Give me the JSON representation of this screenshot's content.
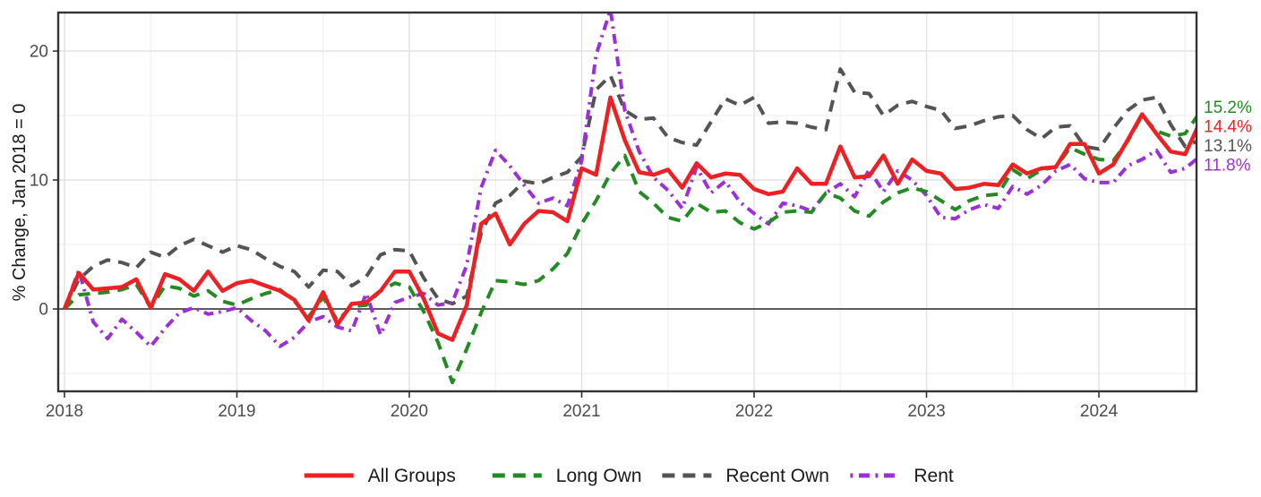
{
  "chart_data": {
    "type": "line",
    "title": "",
    "ylabel": "% Change, Jan 2018 = 0",
    "x_unit": "monthly",
    "x_range": [
      "2018-01",
      "2024-08"
    ],
    "x_tick_labels": [
      "2018",
      "2019",
      "2020",
      "2021",
      "2022",
      "2023",
      "2024"
    ],
    "y_ticks": [
      0,
      10,
      20
    ],
    "y_minor_ticks": [
      -5,
      5,
      15
    ],
    "ylim": [
      -6.4,
      23.0
    ],
    "grid": "major+minor",
    "zero_line": true,
    "legend_position": "bottom",
    "colors": {
      "all_groups": "#ED2024",
      "long_own": "#228B22",
      "recent_own": "#545454",
      "rent": "#9B30D6",
      "grid_major": "#E2E2E2",
      "grid_minor": "#F0F0F0",
      "axis_text": "#4D4D4D",
      "panel_border": "#333333",
      "zero_line_color": "#474747",
      "legend_text": "#1A1A1A"
    },
    "series": [
      {
        "name": "All Groups",
        "color": "#ED2024",
        "dash": "solid",
        "end_label": "14.4%",
        "values": [
          0.0,
          2.8,
          1.5,
          1.6,
          1.7,
          2.3,
          0.1,
          2.7,
          2.3,
          1.4,
          2.9,
          1.4,
          2.0,
          2.2,
          1.8,
          1.4,
          0.7,
          -0.9,
          1.3,
          -1.2,
          0.4,
          0.5,
          1.4,
          2.9,
          2.9,
          0.8,
          -1.9,
          -2.4,
          0.3,
          6.6,
          7.4,
          5.0,
          6.6,
          7.6,
          7.5,
          6.8,
          10.9,
          10.4,
          16.4,
          13.1,
          10.6,
          10.4,
          10.8,
          9.4,
          11.3,
          10.2,
          10.5,
          10.4,
          9.3,
          8.9,
          9.1,
          10.9,
          9.7,
          9.7,
          12.6,
          10.2,
          10.3,
          11.9,
          9.7,
          11.6,
          10.7,
          10.5,
          9.3,
          9.4,
          9.7,
          9.6,
          11.2,
          10.5,
          10.9,
          11.0,
          12.8,
          12.8,
          10.5,
          11.2,
          13.1,
          15.1,
          13.6,
          12.2,
          12.0,
          14.4
        ]
      },
      {
        "name": "Long Own",
        "color": "#228B22",
        "dash": "dashed",
        "end_label": "15.2%",
        "values": [
          0.0,
          1.1,
          1.2,
          1.3,
          1.5,
          1.9,
          0.1,
          1.8,
          1.6,
          1.0,
          1.4,
          0.6,
          0.3,
          0.8,
          1.2,
          1.5,
          0.6,
          -0.6,
          0.9,
          -0.9,
          0.2,
          0.3,
          1.4,
          2.0,
          1.7,
          -0.2,
          -2.6,
          -5.7,
          -3.1,
          -0.3,
          2.2,
          2.1,
          1.9,
          2.2,
          3.1,
          4.3,
          6.6,
          8.4,
          10.5,
          11.9,
          9.1,
          8.2,
          7.1,
          6.8,
          8.2,
          7.5,
          7.6,
          6.7,
          6.2,
          6.7,
          7.5,
          7.6,
          7.5,
          9.0,
          8.6,
          7.6,
          7.2,
          8.3,
          9.0,
          9.4,
          9.1,
          8.4,
          7.7,
          8.4,
          8.8,
          8.9,
          10.8,
          10.1,
          10.8,
          11.0,
          12.5,
          12.0,
          11.6,
          11.5,
          13.0,
          15.0,
          13.8,
          13.4,
          13.6,
          15.2
        ]
      },
      {
        "name": "Recent Own",
        "color": "#545454",
        "dash": "dashed",
        "end_label": "13.1%",
        "values": [
          0.0,
          2.3,
          3.3,
          3.8,
          3.6,
          3.2,
          4.4,
          4.0,
          4.9,
          5.4,
          4.9,
          4.4,
          4.9,
          4.6,
          3.9,
          3.3,
          2.9,
          1.7,
          3.0,
          2.9,
          1.8,
          2.5,
          4.2,
          4.6,
          4.5,
          2.4,
          0.8,
          0.4,
          1.0,
          5.9,
          8.2,
          8.8,
          9.9,
          9.7,
          10.2,
          10.6,
          11.8,
          17.0,
          18.1,
          15.4,
          14.7,
          14.8,
          13.3,
          12.9,
          12.7,
          14.5,
          16.3,
          15.8,
          16.4,
          14.4,
          14.5,
          14.4,
          14.1,
          13.9,
          18.6,
          16.8,
          16.7,
          15.0,
          15.8,
          16.1,
          15.7,
          15.4,
          14.0,
          14.2,
          14.6,
          14.9,
          15.0,
          13.9,
          13.2,
          14.1,
          14.2,
          12.6,
          12.4,
          14.0,
          15.4,
          16.2,
          16.4,
          14.3,
          12.6,
          13.1
        ]
      },
      {
        "name": "Rent",
        "color": "#9B30D6",
        "dash": "dotdash",
        "end_label": "11.8%",
        "values": [
          0.0,
          3.0,
          -1.0,
          -2.3,
          -0.8,
          -1.8,
          -2.9,
          -1.5,
          -0.3,
          0.1,
          -0.4,
          -0.2,
          0.1,
          -0.9,
          -1.7,
          -2.9,
          -2.2,
          -1.0,
          -0.6,
          -1.4,
          -1.7,
          1.2,
          -2.0,
          0.5,
          0.9,
          1.2,
          0.3,
          0.5,
          3.4,
          9.4,
          12.3,
          11.1,
          9.6,
          8.2,
          8.6,
          8.0,
          11.5,
          19.7,
          23.2,
          15.4,
          12.2,
          10.2,
          9.2,
          7.8,
          11.0,
          9.0,
          9.9,
          8.3,
          7.4,
          6.6,
          8.2,
          8.0,
          7.6,
          9.0,
          9.7,
          8.7,
          10.8,
          9.1,
          10.7,
          10.0,
          8.8,
          7.1,
          7.0,
          7.7,
          8.1,
          7.8,
          9.5,
          8.9,
          9.6,
          10.7,
          11.2,
          10.1,
          9.8,
          9.8,
          11.1,
          11.6,
          12.3,
          10.6,
          10.9,
          11.8
        ]
      }
    ],
    "end_labels_top_to_bottom": [
      "15.2%",
      "14.4%",
      "13.1%",
      "11.8%"
    ],
    "legend_items": [
      "All Groups",
      "Long Own",
      "Recent Own",
      "Rent"
    ]
  }
}
